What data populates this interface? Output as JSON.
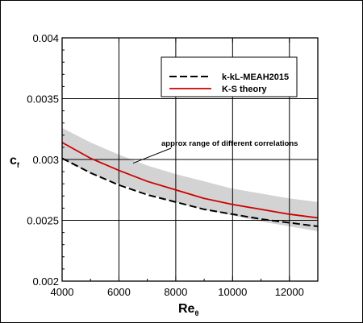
{
  "chart_data": {
    "type": "line",
    "xlabel_main": "Re",
    "xlabel_sub": "θ",
    "ylabel_main": "c",
    "ylabel_sub": "f",
    "xlim": [
      4000,
      13000
    ],
    "ylim": [
      0.002,
      0.004
    ],
    "x_ticks": [
      4000,
      6000,
      8000,
      10000,
      12000
    ],
    "x_tick_labels": [
      "4000",
      "6000",
      "8000",
      "10000",
      "12000"
    ],
    "y_ticks": [
      0.002,
      0.0025,
      0.003,
      0.0035,
      0.004
    ],
    "y_tick_labels": [
      "0.002",
      "0.0025",
      "0.003",
      "0.0035",
      "0.004"
    ],
    "grid": true,
    "legend_position": "top-right",
    "series": [
      {
        "name": "k-kL-MEAH2015",
        "style": "dashed",
        "color": "#000000",
        "x": [
          4000,
          5000,
          6000,
          7000,
          8000,
          9000,
          10000,
          11000,
          12000,
          13000
        ],
        "y": [
          0.00301,
          0.00289,
          0.00279,
          0.00271,
          0.00265,
          0.00259,
          0.00255,
          0.00251,
          0.00248,
          0.00245
        ]
      },
      {
        "name": "K-S theory",
        "style": "solid",
        "color": "#cc0000",
        "x": [
          4000,
          5000,
          6000,
          7000,
          8000,
          9000,
          10000,
          11000,
          12000,
          13000
        ],
        "y": [
          0.00314,
          0.00301,
          0.00291,
          0.00282,
          0.00275,
          0.00268,
          0.00263,
          0.00259,
          0.00255,
          0.00252
        ]
      }
    ],
    "band": {
      "color": "#d3d3d3",
      "x": [
        4000,
        5000,
        6000,
        7000,
        8000,
        9000,
        10000,
        11000,
        12000,
        13000
      ],
      "upper": [
        0.00326,
        0.00314,
        0.00304,
        0.00295,
        0.00288,
        0.00282,
        0.00276,
        0.00272,
        0.00268,
        0.00265
      ],
      "lower": [
        0.003,
        0.00289,
        0.0028,
        0.00272,
        0.00265,
        0.00259,
        0.00254,
        0.00249,
        0.00245,
        0.00241
      ]
    },
    "annotation": {
      "text": "approx range of different correlations",
      "target": [
        6500,
        0.00297
      ]
    }
  }
}
